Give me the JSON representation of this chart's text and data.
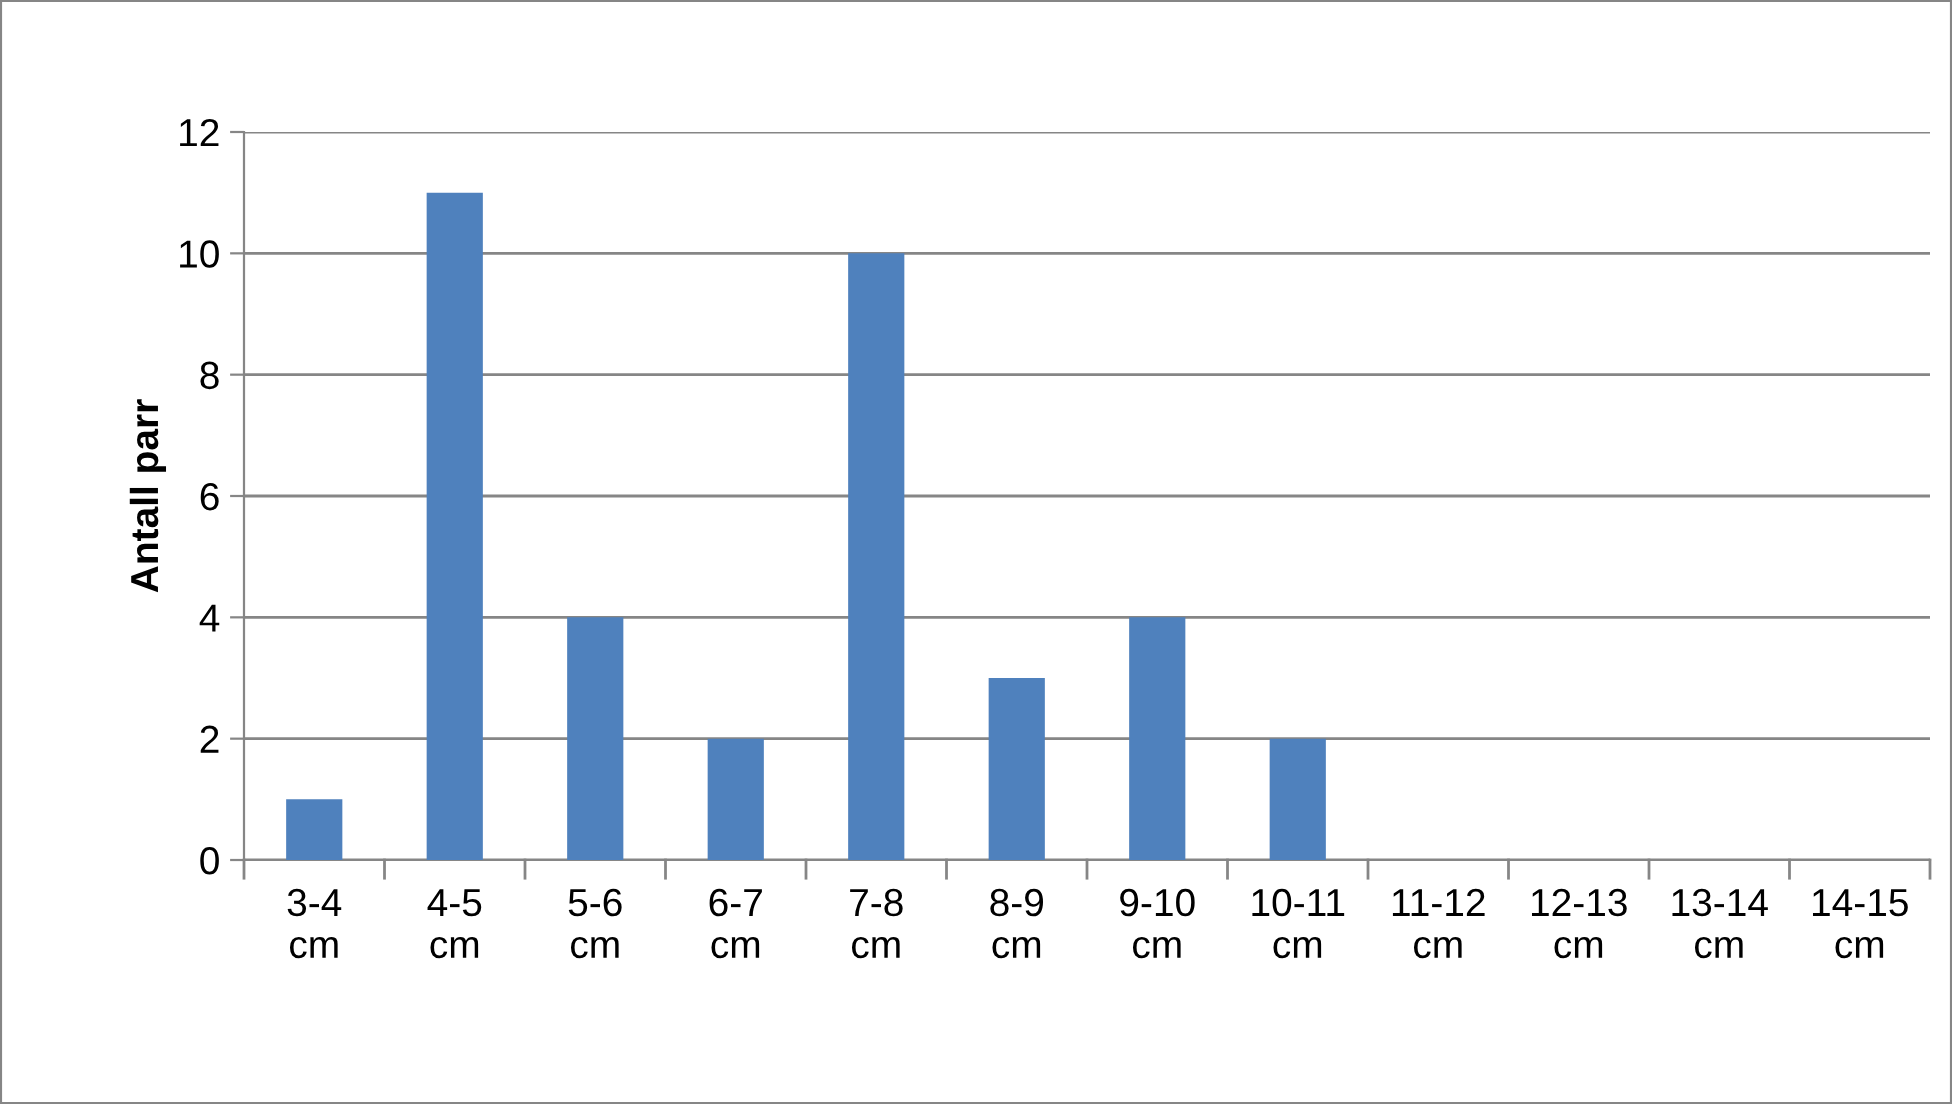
{
  "chart_data": {
    "type": "bar",
    "ylabel": "Antall parr",
    "categories": [
      "3-4\ncm",
      "4-5\ncm",
      "5-6\ncm",
      "6-7\ncm",
      "7-8\ncm",
      "8-9\ncm",
      "9-10\ncm",
      "10-11\ncm",
      "11-12\ncm",
      "12-13\ncm",
      "13-14\ncm",
      "14-15\ncm"
    ],
    "values": [
      1,
      11,
      4,
      2,
      10,
      3,
      4,
      2,
      0,
      0,
      0,
      0
    ],
    "color": "#4f81bd",
    "ylim": [
      0,
      12
    ],
    "yticks": [
      0,
      2,
      4,
      6,
      8,
      10,
      12
    ],
    "grid": "y",
    "legend": false
  }
}
